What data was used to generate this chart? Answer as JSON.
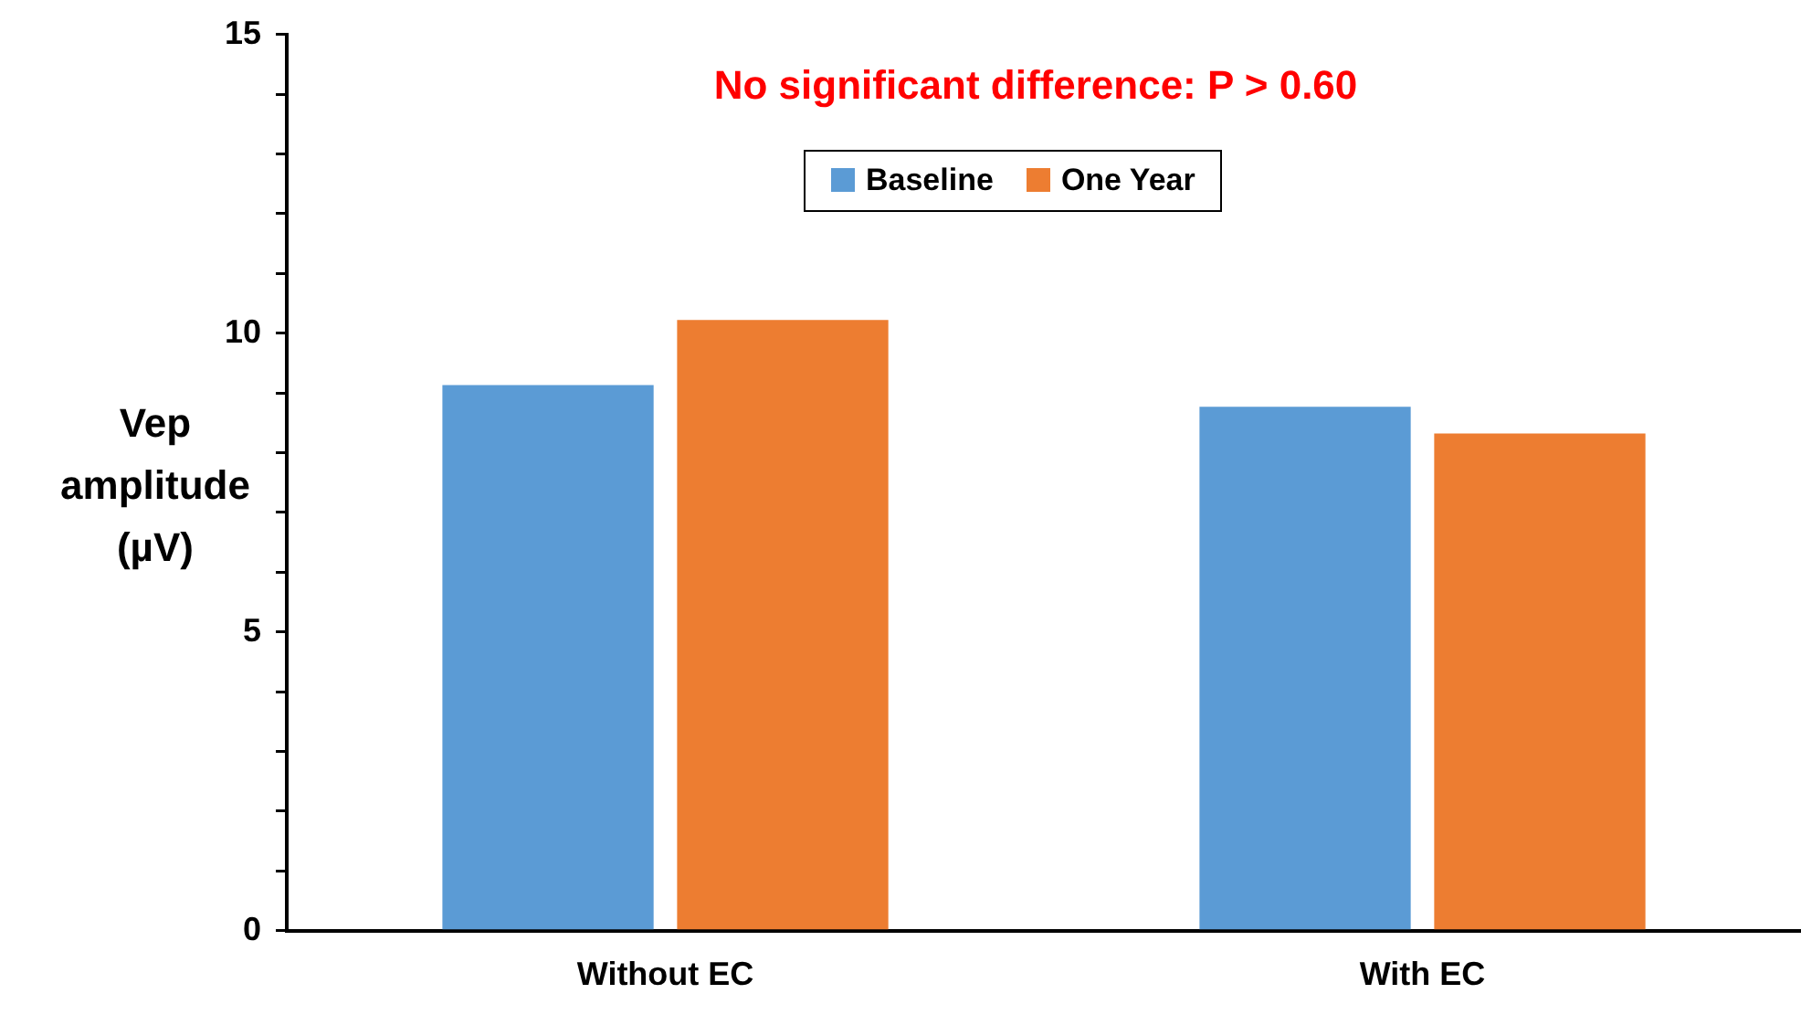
{
  "chart_data": {
    "type": "bar",
    "ylabel": "Vep amplitude (µV)",
    "annotations": [
      "No significant difference: P > 0.60"
    ],
    "categories": [
      "Without EC",
      "With EC"
    ],
    "series": [
      {
        "name": "Baseline",
        "color": "#5b9bd5",
        "values": [
          9.13,
          8.77
        ]
      },
      {
        "name": "One Year",
        "color": "#ed7d31",
        "values": [
          10.22,
          8.32
        ]
      }
    ],
    "ylim": [
      0,
      15
    ],
    "yticks": [
      0,
      {
        "value": 1,
        "label": null
      },
      {
        "value": 2,
        "label": null
      },
      {
        "value": 3,
        "label": null
      },
      {
        "value": 4,
        "label": null
      },
      5,
      {
        "value": 6,
        "label": null
      },
      {
        "value": 7,
        "label": null
      },
      {
        "value": 8,
        "label": null
      },
      {
        "value": 9,
        "label": null
      },
      10,
      {
        "value": 11,
        "label": null
      },
      {
        "value": 12,
        "label": null
      },
      {
        "value": 13,
        "label": null
      },
      {
        "value": 14,
        "label": null
      },
      15
    ],
    "grid": false,
    "legend": "top"
  }
}
